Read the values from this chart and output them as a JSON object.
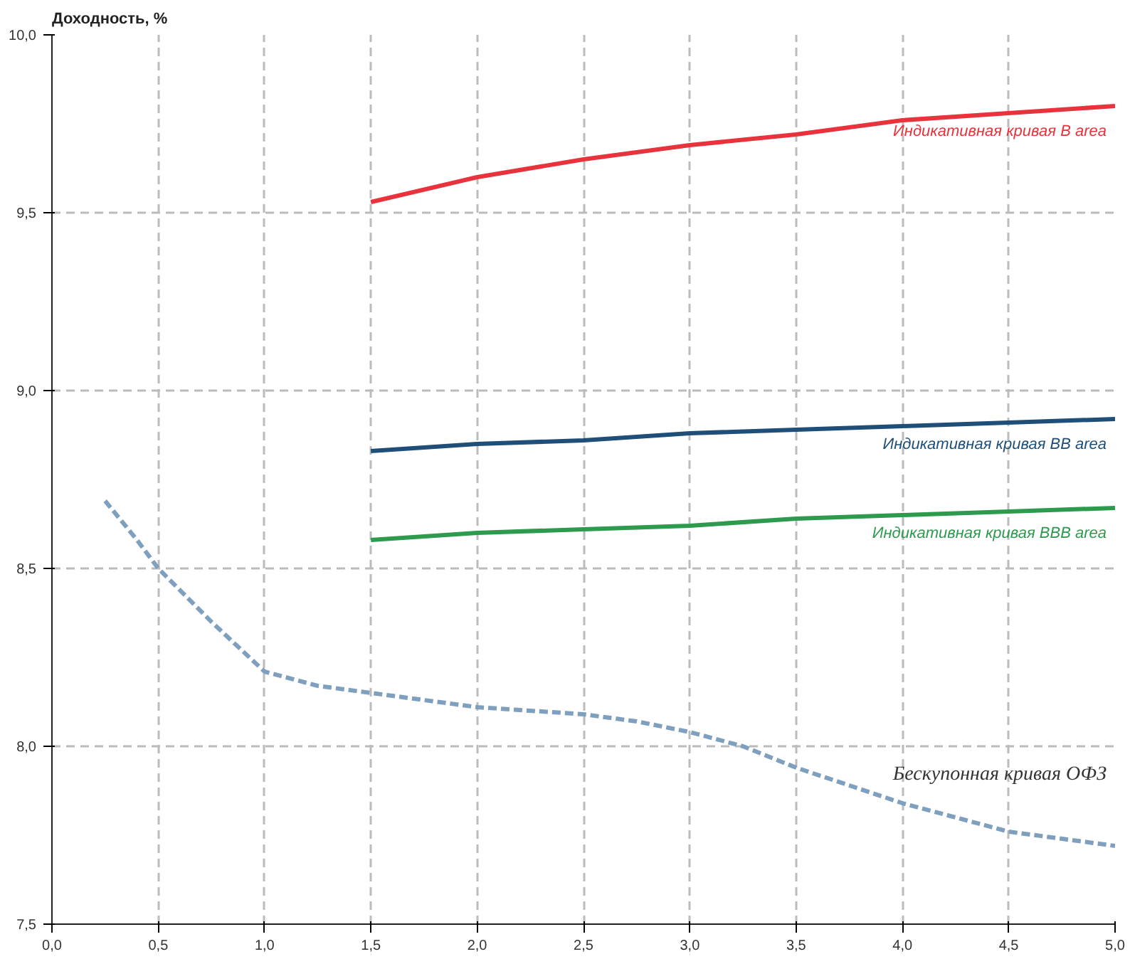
{
  "chart_data": {
    "type": "line",
    "ylabel": "Доходность, %",
    "xlim": [
      0,
      5
    ],
    "ylim": [
      7.5,
      10
    ],
    "xticks": [
      {
        "value": 0,
        "label": "0,0"
      },
      {
        "value": 0.5,
        "label": "0,5"
      },
      {
        "value": 1,
        "label": "1,0"
      },
      {
        "value": 1.5,
        "label": "1,5"
      },
      {
        "value": 2,
        "label": "2,0"
      },
      {
        "value": 2.5,
        "label": "2,5"
      },
      {
        "value": 3,
        "label": "3,0"
      },
      {
        "value": 3.5,
        "label": "3,5"
      },
      {
        "value": 4,
        "label": "4,0"
      },
      {
        "value": 4.5,
        "label": "4,5"
      },
      {
        "value": 5,
        "label": "5,0"
      }
    ],
    "yticks": [
      {
        "value": 7.5,
        "label": "7,5"
      },
      {
        "value": 8,
        "label": "8,0"
      },
      {
        "value": 8.5,
        "label": "8,5"
      },
      {
        "value": 9,
        "label": "9,0"
      },
      {
        "value": 9.5,
        "label": "9,5"
      },
      {
        "value": 10,
        "label": "10,0"
      }
    ],
    "grid": true,
    "marker": "none",
    "series": [
      {
        "name": "Индикативная кривая B area",
        "color": "#e8323c",
        "line_style": "solid",
        "x": [
          1.5,
          2,
          2.5,
          3,
          3.5,
          4,
          4.5,
          5
        ],
        "values": [
          9.53,
          9.6,
          9.65,
          9.69,
          9.72,
          9.76,
          9.78,
          9.8
        ]
      },
      {
        "name": "Индикативная кривая BB area",
        "color": "#1f4e79",
        "line_style": "solid",
        "x": [
          1.5,
          2,
          2.5,
          3,
          3.5,
          4,
          4.5,
          5
        ],
        "values": [
          8.83,
          8.85,
          8.86,
          8.88,
          8.89,
          8.9,
          8.91,
          8.92
        ]
      },
      {
        "name": "Индикативная кривая BBB area",
        "color": "#2e9a4e",
        "line_style": "solid",
        "x": [
          1.5,
          2,
          2.5,
          3,
          3.5,
          4,
          4.5,
          5
        ],
        "values": [
          8.58,
          8.6,
          8.61,
          8.62,
          8.64,
          8.65,
          8.66,
          8.67
        ]
      },
      {
        "name": "Бескупонная кривая ОФЗ",
        "color": "#7f9fbf",
        "line_style": "dashed",
        "x": [
          0.25,
          0.4,
          0.5,
          0.75,
          1,
          1.25,
          1.5,
          2,
          2.5,
          2.75,
          3,
          3.25,
          3.5,
          3.75,
          4,
          4.5,
          5
        ],
        "values": [
          8.69,
          8.58,
          8.5,
          8.35,
          8.21,
          8.17,
          8.15,
          8.11,
          8.09,
          8.07,
          8.04,
          8.0,
          7.94,
          7.89,
          7.84,
          7.76,
          7.72
        ]
      }
    ]
  }
}
